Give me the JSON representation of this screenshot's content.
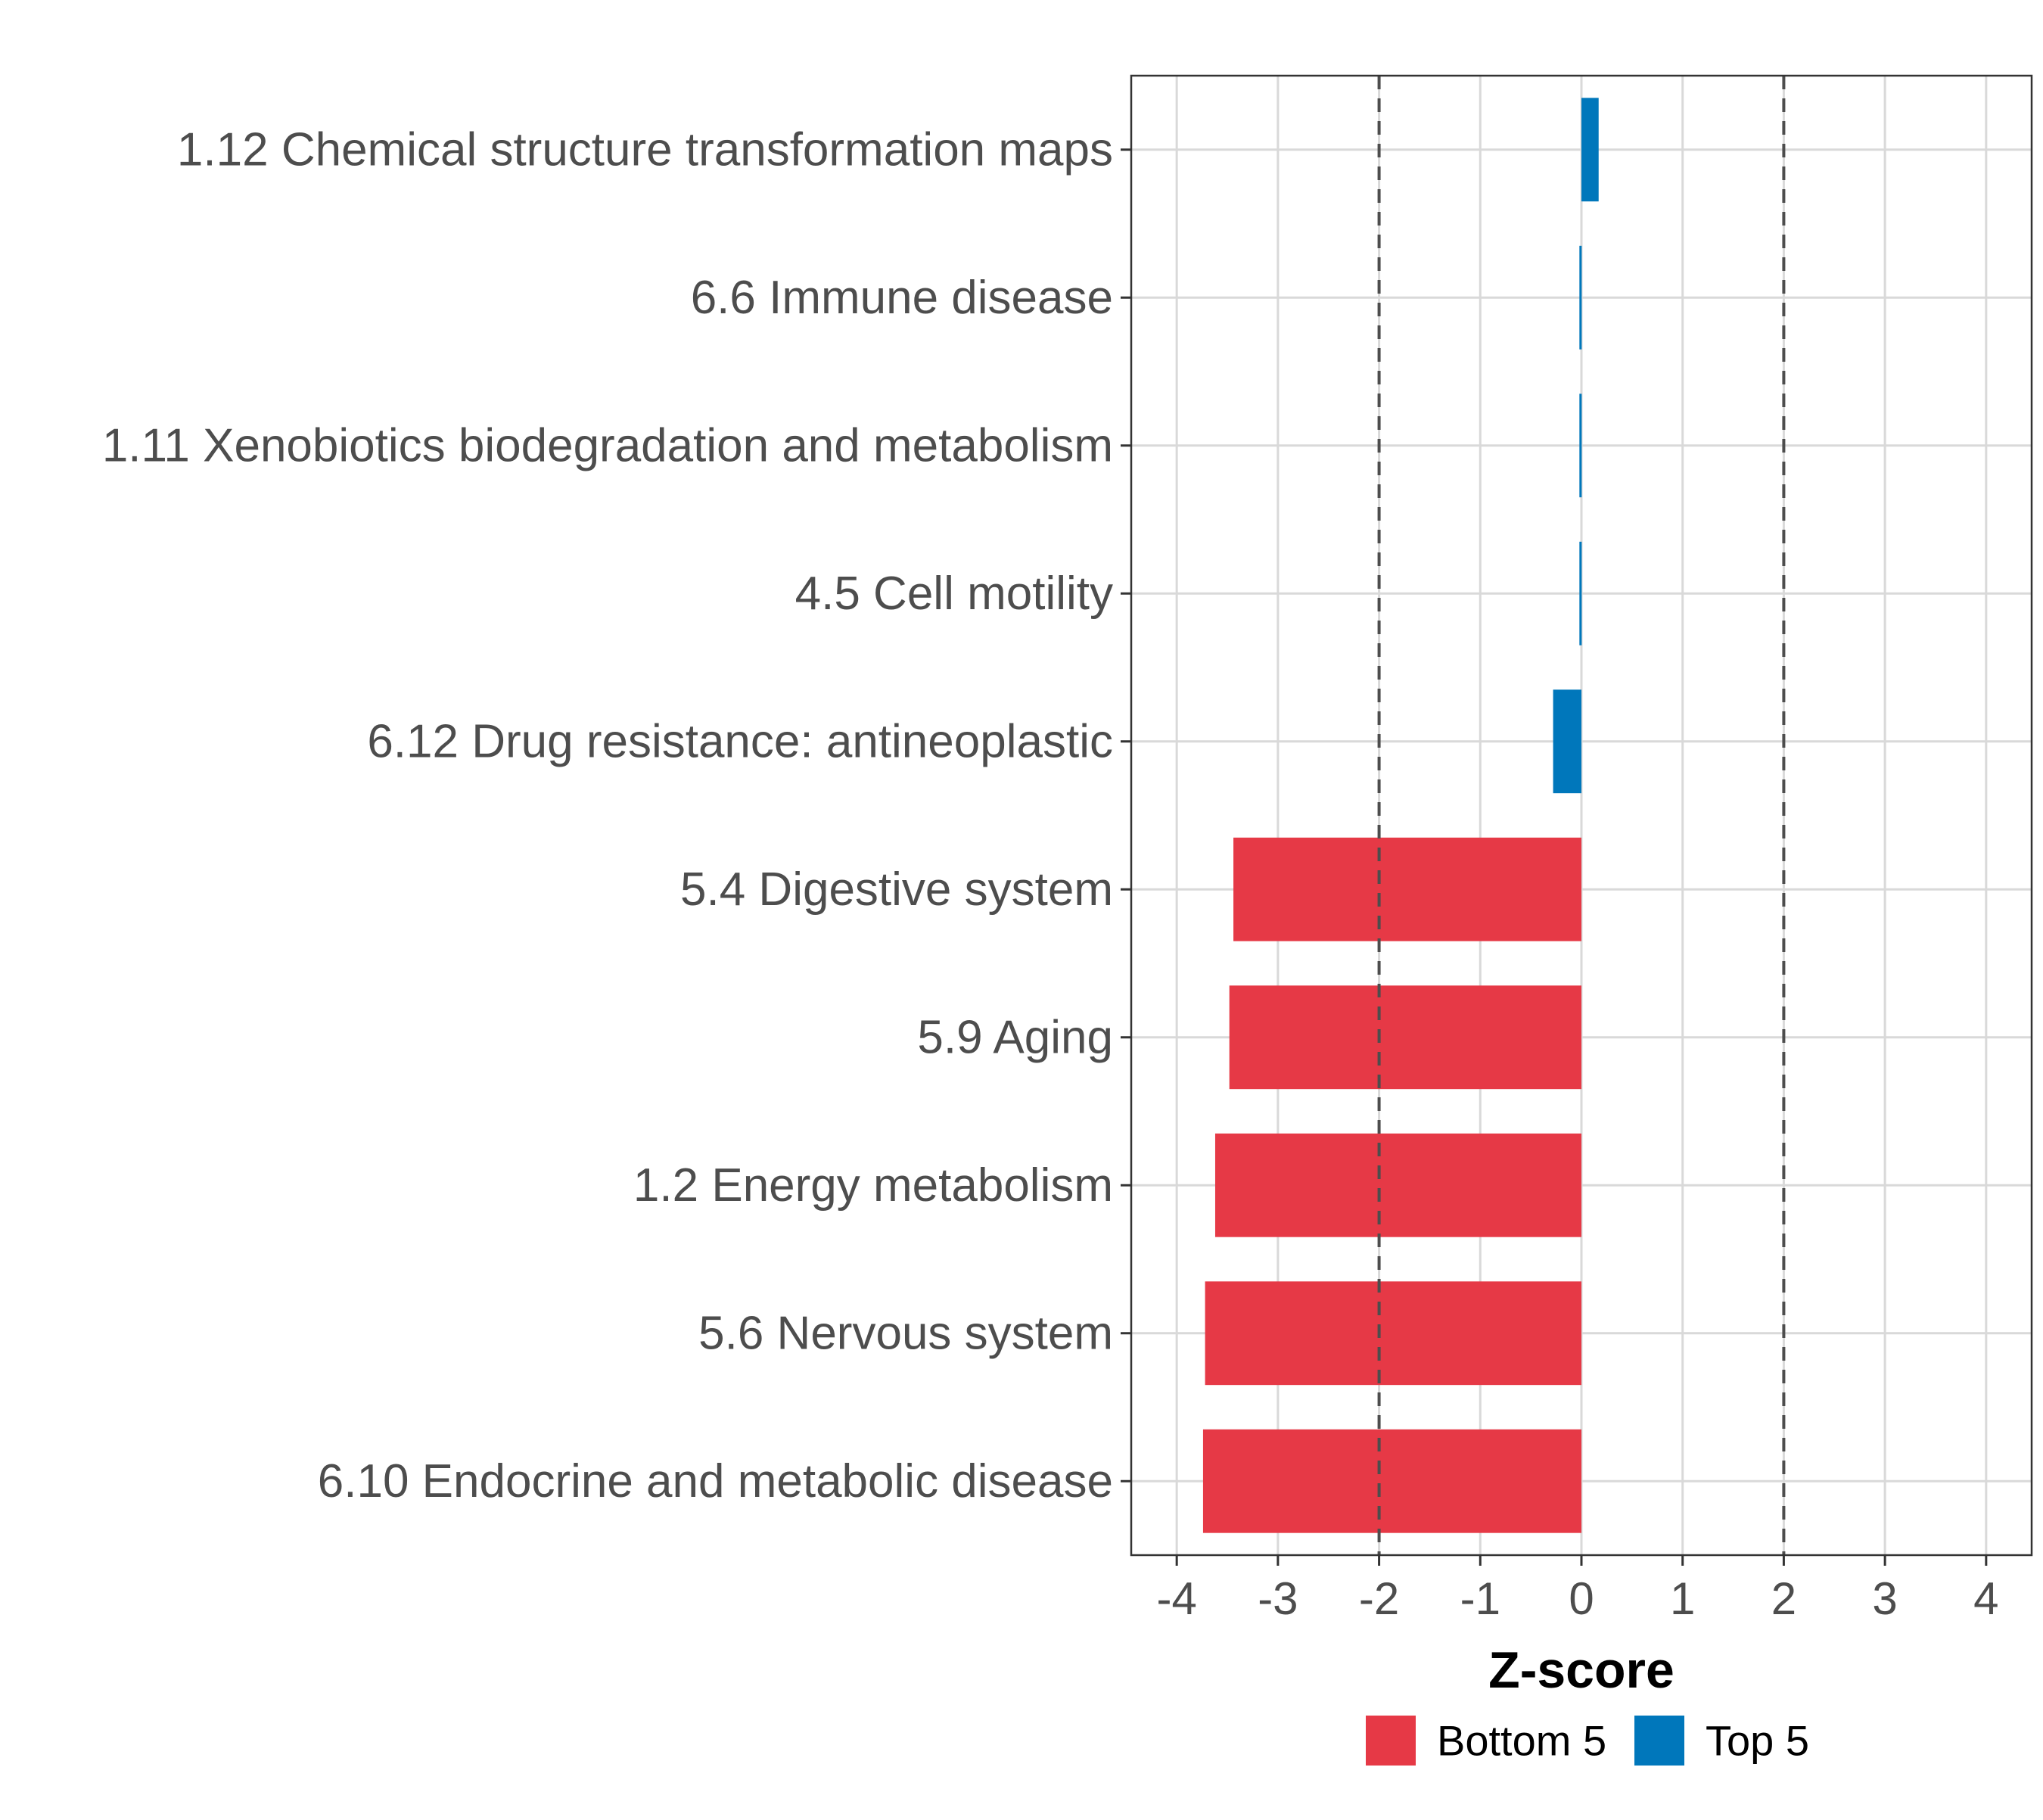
{
  "chart_data": {
    "type": "bar",
    "orientation": "horizontal",
    "title": "",
    "xlabel": "Z-score",
    "ylabel": "",
    "xlim": [
      -4.45,
      4.45
    ],
    "x_ticks": [
      -4,
      -3,
      -2,
      -1,
      0,
      1,
      2,
      3,
      4
    ],
    "x_tick_labels": [
      "-4",
      "-3",
      "-2",
      "-1",
      "0",
      "1",
      "2",
      "3",
      "4"
    ],
    "grid": true,
    "reference_lines": [
      {
        "value": -2,
        "style": "dashed"
      },
      {
        "value": 2,
        "style": "dashed"
      }
    ],
    "categories": [
      "1.12 Chemical structure transformation maps",
      "6.6 Immune disease",
      "1.11 Xenobiotics biodegradation and metabolism",
      "4.5 Cell motility",
      "6.12 Drug resistance: antineoplastic",
      "5.4 Digestive system",
      "5.9 Aging",
      "1.2 Energy metabolism",
      "5.6 Nervous system",
      "6.10 Endocrine and metabolic disease"
    ],
    "values": [
      0.17,
      -0.02,
      -0.02,
      -0.02,
      -0.28,
      -3.44,
      -3.48,
      -3.62,
      -3.72,
      -3.74
    ],
    "groups": [
      "Top 5",
      "Top 5",
      "Top 5",
      "Top 5",
      "Top 5",
      "Bottom 5",
      "Bottom 5",
      "Bottom 5",
      "Bottom 5",
      "Bottom 5"
    ],
    "legend": {
      "position": "bottom",
      "entries": [
        {
          "label": "Bottom 5",
          "color": "#e63946"
        },
        {
          "label": "Top 5",
          "color": "#0077bb"
        }
      ]
    }
  }
}
